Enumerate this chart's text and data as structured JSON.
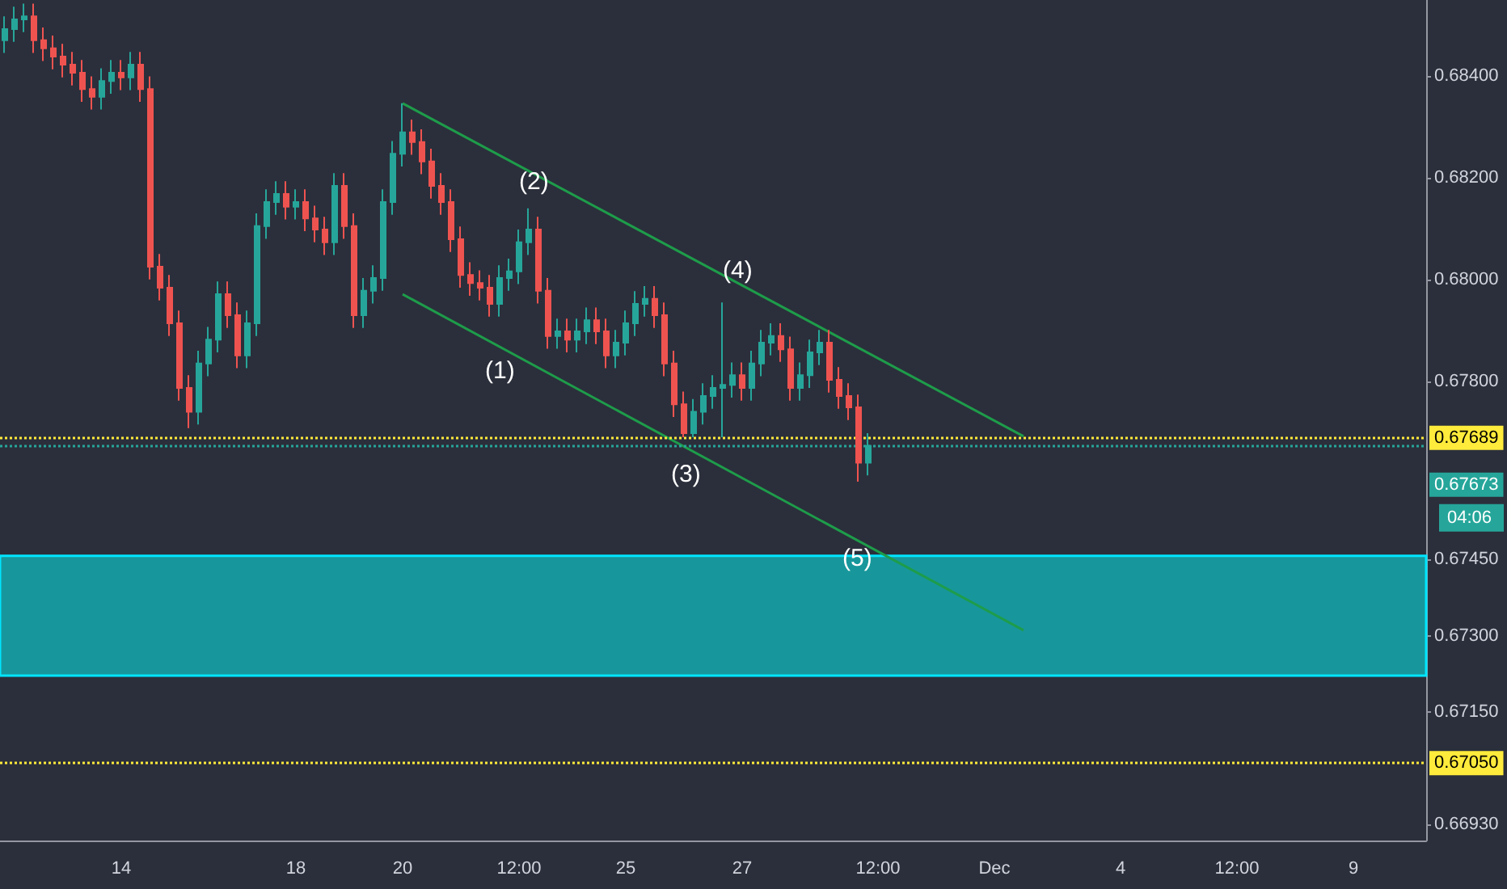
{
  "chart_data": {
    "type": "candlestick",
    "categories": [
      null,
      null,
      null,
      null,
      null,
      null,
      null,
      null,
      null,
      null,
      null,
      null,
      "14",
      null,
      null,
      null,
      null,
      null,
      null,
      null,
      null,
      null,
      null,
      null,
      null,
      null,
      null,
      null,
      null,
      null,
      "18",
      null,
      null,
      null,
      null,
      null,
      null,
      null,
      null,
      null,
      null,
      "20",
      null,
      null,
      null,
      null,
      null,
      null,
      null,
      null,
      null,
      null,
      null,
      "12:00",
      null,
      null,
      null,
      null,
      null,
      null,
      null,
      null,
      null,
      null,
      "25",
      null,
      null,
      null,
      null,
      null,
      null,
      null,
      null,
      null,
      null,
      null,
      "27",
      null,
      null,
      null,
      null,
      null,
      null,
      null,
      null,
      null,
      null,
      null,
      null,
      null,
      "12:00",
      null,
      null,
      null,
      null,
      null,
      null,
      null,
      null,
      null,
      null,
      null,
      "Dec",
      null,
      null,
      null,
      null,
      null,
      null,
      null,
      null,
      null,
      null,
      null,
      null,
      "4",
      null,
      null,
      null,
      null,
      null,
      null,
      null,
      null,
      null,
      null,
      null,
      "12:00",
      null,
      null,
      null,
      null,
      null,
      null,
      null,
      null,
      null,
      null,
      null,
      "9",
      null,
      null,
      null,
      null,
      null,
      null,
      null
    ],
    "ohlc": [
      [
        0.6847,
        0.68517,
        0.68445,
        0.68492
      ],
      [
        0.68492,
        0.68536,
        0.68467,
        0.68511
      ],
      [
        0.68511,
        0.68542,
        0.68486,
        0.68517
      ],
      [
        0.68517,
        0.68542,
        0.68445,
        0.6847
      ],
      [
        0.6847,
        0.68495,
        0.68429,
        0.68454
      ],
      [
        0.68454,
        0.68479,
        0.68413,
        0.68438
      ],
      [
        0.68438,
        0.68463,
        0.68397,
        0.68422
      ],
      [
        0.68422,
        0.68447,
        0.68381,
        0.68406
      ],
      [
        0.68406,
        0.68431,
        0.68349,
        0.68374
      ],
      [
        0.68374,
        0.68399,
        0.68334,
        0.68359
      ],
      [
        0.68359,
        0.68415,
        0.68334,
        0.6839
      ],
      [
        0.6839,
        0.68431,
        0.68365,
        0.68406
      ],
      [
        0.68406,
        0.68431,
        0.68372,
        0.68397
      ],
      [
        0.68397,
        0.68447,
        0.68372,
        0.68422
      ],
      [
        0.68422,
        0.68447,
        0.68349,
        0.68374
      ],
      [
        0.68374,
        0.68399,
        0.68,
        0.68025
      ],
      [
        0.68025,
        0.6805,
        0.67959,
        0.67984
      ],
      [
        0.67984,
        0.68009,
        0.67889,
        0.67914
      ],
      [
        0.67914,
        0.67939,
        0.67762,
        0.67787
      ],
      [
        0.67787,
        0.67812,
        0.67708,
        0.6774
      ],
      [
        0.6774,
        0.6786,
        0.67715,
        0.67835
      ],
      [
        0.67835,
        0.67907,
        0.6781,
        0.67882
      ],
      [
        0.67882,
        0.67996,
        0.67857,
        0.67971
      ],
      [
        0.67971,
        0.67996,
        0.67905,
        0.6793
      ],
      [
        0.6793,
        0.67955,
        0.67826,
        0.67851
      ],
      [
        0.67851,
        0.67939,
        0.67826,
        0.67914
      ],
      [
        0.67914,
        0.6813,
        0.67889,
        0.68105
      ],
      [
        0.68105,
        0.68177,
        0.6808,
        0.68152
      ],
      [
        0.68152,
        0.68193,
        0.68127,
        0.68168
      ],
      [
        0.68168,
        0.68193,
        0.68118,
        0.68143
      ],
      [
        0.68143,
        0.68177,
        0.68118,
        0.68152
      ],
      [
        0.68152,
        0.68177,
        0.68095,
        0.6812
      ],
      [
        0.6812,
        0.68145,
        0.68073,
        0.68098
      ],
      [
        0.68098,
        0.68123,
        0.68048,
        0.68073
      ],
      [
        0.68073,
        0.68209,
        0.68048,
        0.68184
      ],
      [
        0.68184,
        0.68209,
        0.6808,
        0.68105
      ],
      [
        0.68105,
        0.6813,
        0.67905,
        0.6793
      ],
      [
        0.6793,
        0.68003,
        0.67905,
        0.67978
      ],
      [
        0.67978,
        0.68028,
        0.67953,
        0.68003
      ],
      [
        0.68003,
        0.68177,
        0.67978,
        0.68152
      ],
      [
        0.68152,
        0.68272,
        0.68127,
        0.68247
      ],
      [
        0.68247,
        0.68346,
        0.68222,
        0.68289
      ],
      [
        0.68289,
        0.68314,
        0.68245,
        0.6827
      ],
      [
        0.6827,
        0.68295,
        0.68207,
        0.68232
      ],
      [
        0.68232,
        0.68257,
        0.68159,
        0.68184
      ],
      [
        0.68184,
        0.68209,
        0.68127,
        0.68152
      ],
      [
        0.68152,
        0.68177,
        0.68054,
        0.68079
      ],
      [
        0.68079,
        0.68104,
        0.67984,
        0.68009
      ],
      [
        0.68009,
        0.68034,
        0.67968,
        0.67993
      ],
      [
        0.67993,
        0.68018,
        0.67959,
        0.67984
      ],
      [
        0.67984,
        0.68009,
        0.67927,
        0.67952
      ],
      [
        0.67952,
        0.68028,
        0.67927,
        0.68003
      ],
      [
        0.68003,
        0.68041,
        0.67978,
        0.68016
      ],
      [
        0.68016,
        0.68098,
        0.67991,
        0.68073
      ],
      [
        0.68073,
        0.6814,
        0.68048,
        0.68098
      ],
      [
        0.68098,
        0.68123,
        0.67953,
        0.67978
      ],
      [
        0.67978,
        0.68003,
        0.67864,
        0.67889
      ],
      [
        0.67889,
        0.67923,
        0.67864,
        0.67898
      ],
      [
        0.67898,
        0.67923,
        0.67857,
        0.67882
      ],
      [
        0.67882,
        0.67923,
        0.67857,
        0.67898
      ],
      [
        0.67898,
        0.67945,
        0.67873,
        0.6792
      ],
      [
        0.6792,
        0.67945,
        0.67873,
        0.67898
      ],
      [
        0.67898,
        0.67923,
        0.67826,
        0.67851
      ],
      [
        0.67851,
        0.67901,
        0.67826,
        0.67876
      ],
      [
        0.67876,
        0.67939,
        0.67851,
        0.67914
      ],
      [
        0.67914,
        0.67977,
        0.67889,
        0.67952
      ],
      [
        0.67952,
        0.67987,
        0.67927,
        0.67962
      ],
      [
        0.67962,
        0.67987,
        0.67905,
        0.6793
      ],
      [
        0.6793,
        0.67955,
        0.6781,
        0.67835
      ],
      [
        0.67835,
        0.6786,
        0.6773,
        0.67755
      ],
      [
        0.67755,
        0.6778,
        0.6769,
        0.67698
      ],
      [
        0.67698,
        0.67765,
        0.6769,
        0.6774
      ],
      [
        0.6774,
        0.67796,
        0.67715,
        0.67771
      ],
      [
        0.67771,
        0.67812,
        0.67746,
        0.67787
      ],
      [
        0.67787,
        0.67955,
        0.6769,
        0.67793
      ],
      [
        0.67793,
        0.67837,
        0.67768,
        0.67812
      ],
      [
        0.67812,
        0.67837,
        0.67762,
        0.67787
      ],
      [
        0.67787,
        0.6786,
        0.67762,
        0.67835
      ],
      [
        0.67835,
        0.67901,
        0.6781,
        0.67876
      ],
      [
        0.67876,
        0.67914,
        0.67851,
        0.67889
      ],
      [
        0.67889,
        0.67914,
        0.67838,
        0.67863
      ],
      [
        0.67863,
        0.67888,
        0.67762,
        0.67787
      ],
      [
        0.67787,
        0.67837,
        0.67762,
        0.67812
      ],
      [
        0.67812,
        0.67882,
        0.67787,
        0.67857
      ],
      [
        0.67857,
        0.67901,
        0.67832,
        0.67876
      ],
      [
        0.67876,
        0.67901,
        0.67778,
        0.67803
      ],
      [
        0.67803,
        0.67828,
        0.67746,
        0.67771
      ],
      [
        0.67771,
        0.67796,
        0.67724,
        0.67749
      ],
      [
        0.67749,
        0.67774,
        0.67603,
        0.6764
      ],
      [
        0.6764,
        0.67698,
        0.67615,
        0.67673
      ],
      null,
      null,
      null,
      null,
      null,
      null,
      null,
      null,
      null,
      null,
      null,
      null,
      null,
      null,
      null,
      null,
      null,
      null,
      null,
      null,
      null,
      null,
      null,
      null,
      null,
      null,
      null,
      null,
      null,
      null,
      null,
      null,
      null,
      null,
      null,
      null,
      null,
      null,
      null,
      null,
      null,
      null,
      null,
      null,
      null,
      null,
      null,
      null,
      null,
      null,
      null,
      null,
      null,
      null,
      null,
      null,
      null
    ],
    "colors": [
      "#26a69a",
      "#26a69a",
      "#26a69a",
      "#ef5350",
      "#ef5350",
      "#ef5350",
      "#ef5350",
      "#ef5350",
      "#ef5350",
      "#ef5350",
      "#26a69a",
      "#26a69a",
      "#ef5350",
      "#26a69a",
      "#ef5350",
      "#ef5350",
      "#ef5350",
      "#ef5350",
      "#ef5350",
      "#ef5350",
      "#26a69a",
      "#26a69a",
      "#26a69a",
      "#ef5350",
      "#ef5350",
      "#26a69a",
      "#26a69a",
      "#26a69a",
      "#26a69a",
      "#ef5350",
      "#26a69a",
      "#ef5350",
      "#ef5350",
      "#ef5350",
      "#26a69a",
      "#ef5350",
      "#ef5350",
      "#26a69a",
      "#26a69a",
      "#26a69a",
      "#26a69a",
      "#26a69a",
      "#ef5350",
      "#ef5350",
      "#ef5350",
      "#ef5350",
      "#ef5350",
      "#ef5350",
      "#ef5350",
      "#ef5350",
      "#ef5350",
      "#26a69a",
      "#26a69a",
      "#26a69a",
      "#26a69a",
      "#ef5350",
      "#ef5350",
      "#26a69a",
      "#ef5350",
      "#26a69a",
      "#26a69a",
      "#ef5350",
      "#ef5350",
      "#26a69a",
      "#26a69a",
      "#26a69a",
      "#26a69a",
      "#ef5350",
      "#ef5350",
      "#ef5350",
      "#ef5350",
      "#26a69a",
      "#26a69a",
      "#26a69a",
      "#26a69a",
      "#26a69a",
      "#ef5350",
      "#26a69a",
      "#26a69a",
      "#26a69a",
      "#ef5350",
      "#ef5350",
      "#26a69a",
      "#26a69a",
      "#26a69a",
      "#ef5350",
      "#ef5350",
      "#ef5350",
      "#ef5350",
      "#26a69a",
      null,
      null,
      null,
      null,
      null,
      null,
      null,
      null,
      null,
      null,
      null,
      null,
      null,
      null,
      null,
      null,
      null,
      null,
      null,
      null,
      null,
      null,
      null,
      null,
      null,
      null,
      null,
      null,
      null,
      null,
      null,
      null,
      null,
      null,
      null,
      null,
      null,
      null,
      null,
      null,
      null,
      null,
      null,
      null,
      null,
      null,
      null,
      null,
      null,
      null,
      null,
      null,
      null,
      null,
      null,
      null,
      null
    ],
    "series": [
      {
        "type": "line",
        "color": "#1e9c4a",
        "values": [
          null,
          null,
          null,
          null,
          null,
          null,
          null,
          null,
          null,
          null,
          null,
          null,
          null,
          null,
          null,
          null,
          null,
          null,
          null,
          null,
          null,
          null,
          null,
          null,
          null,
          null,
          null,
          null,
          null,
          null,
          null,
          null,
          null,
          null,
          null,
          null,
          null,
          null,
          null,
          null,
          null,
          0.68346,
          null,
          null,
          null,
          null,
          null,
          null,
          null,
          null,
          null,
          null,
          null,
          null,
          null,
          null,
          null,
          null,
          null,
          null,
          null,
          null,
          null,
          null,
          null,
          null,
          null,
          null,
          null,
          null,
          null,
          null,
          null,
          null,
          null,
          null,
          null,
          null,
          null,
          null,
          null,
          null,
          null,
          null,
          null,
          null,
          null,
          null,
          null,
          null,
          null,
          null,
          null,
          null,
          null,
          null,
          null,
          null,
          null,
          null,
          null,
          null,
          null,
          null,
          null,
          0.67692,
          null,
          null,
          null,
          null,
          null,
          null,
          null,
          null,
          null,
          null,
          null,
          null,
          null,
          null,
          null,
          null,
          null,
          null,
          null,
          null,
          null,
          null,
          null,
          null,
          null,
          null,
          null,
          null,
          null,
          null,
          null,
          null,
          null,
          null,
          null,
          null,
          null,
          null,
          null,
          null,
          null
        ]
      },
      {
        "type": "line",
        "color": "#1e9c4a",
        "values": [
          null,
          null,
          null,
          null,
          null,
          null,
          null,
          null,
          null,
          null,
          null,
          null,
          null,
          null,
          null,
          null,
          null,
          null,
          null,
          null,
          null,
          null,
          null,
          null,
          null,
          null,
          null,
          null,
          null,
          null,
          null,
          null,
          null,
          null,
          null,
          null,
          null,
          null,
          null,
          null,
          null,
          0.67971,
          null,
          null,
          null,
          null,
          null,
          null,
          null,
          null,
          null,
          null,
          null,
          null,
          null,
          null,
          null,
          null,
          null,
          null,
          null,
          null,
          null,
          null,
          null,
          null,
          null,
          null,
          null,
          null,
          null,
          null,
          null,
          null,
          null,
          null,
          null,
          null,
          null,
          null,
          null,
          null,
          null,
          null,
          null,
          null,
          null,
          null,
          null,
          null,
          null,
          null,
          null,
          null,
          null,
          null,
          null,
          null,
          null,
          null,
          null,
          null,
          null,
          null,
          null,
          0.67311,
          null,
          null,
          null,
          null,
          null,
          null,
          null,
          null,
          null,
          null,
          null,
          null,
          null,
          null,
          null,
          null,
          null,
          null,
          null,
          null,
          null,
          null,
          null,
          null,
          null,
          null,
          null,
          null,
          null,
          null,
          null,
          null,
          null,
          null,
          null,
          null,
          null,
          null,
          null,
          null,
          null
        ]
      }
    ],
    "ylim": [
      0.66898,
      0.68549
    ],
    "yticks": [
      {
        "value": 0.684,
        "label": "0.68400"
      },
      {
        "value": 0.682,
        "label": "0.68200"
      },
      {
        "value": 0.68,
        "label": "0.68000"
      },
      {
        "value": 0.678,
        "label": "0.67800"
      },
      {
        "value": 0.6745,
        "label": "0.67450"
      },
      {
        "value": 0.673,
        "label": "0.67300"
      },
      {
        "value": 0.6715,
        "label": "0.67150"
      },
      {
        "value": 0.6693,
        "label": "0.66930"
      }
    ],
    "ref_lines": [
      {
        "axis": "y",
        "value": 0.67689,
        "label": "0.67689",
        "color": "#ffeb3b",
        "line_style": "dotted"
      },
      {
        "axis": "y",
        "value": 0.67673,
        "label": "0.67673",
        "color": "#26a69a",
        "line_style": "dotted"
      },
      {
        "axis": "y",
        "value": 0.6705,
        "label": "0.67050",
        "color": "#ffeb3b",
        "line_style": "dotted"
      }
    ],
    "bands": [
      {
        "axis": "y",
        "from": 0.67222,
        "to": 0.67457,
        "color": "#17979b"
      }
    ],
    "annotations": [
      "(1)",
      "(2)",
      "(3)",
      "(4)",
      "(5)",
      "04:06"
    ],
    "grid": false
  }
}
